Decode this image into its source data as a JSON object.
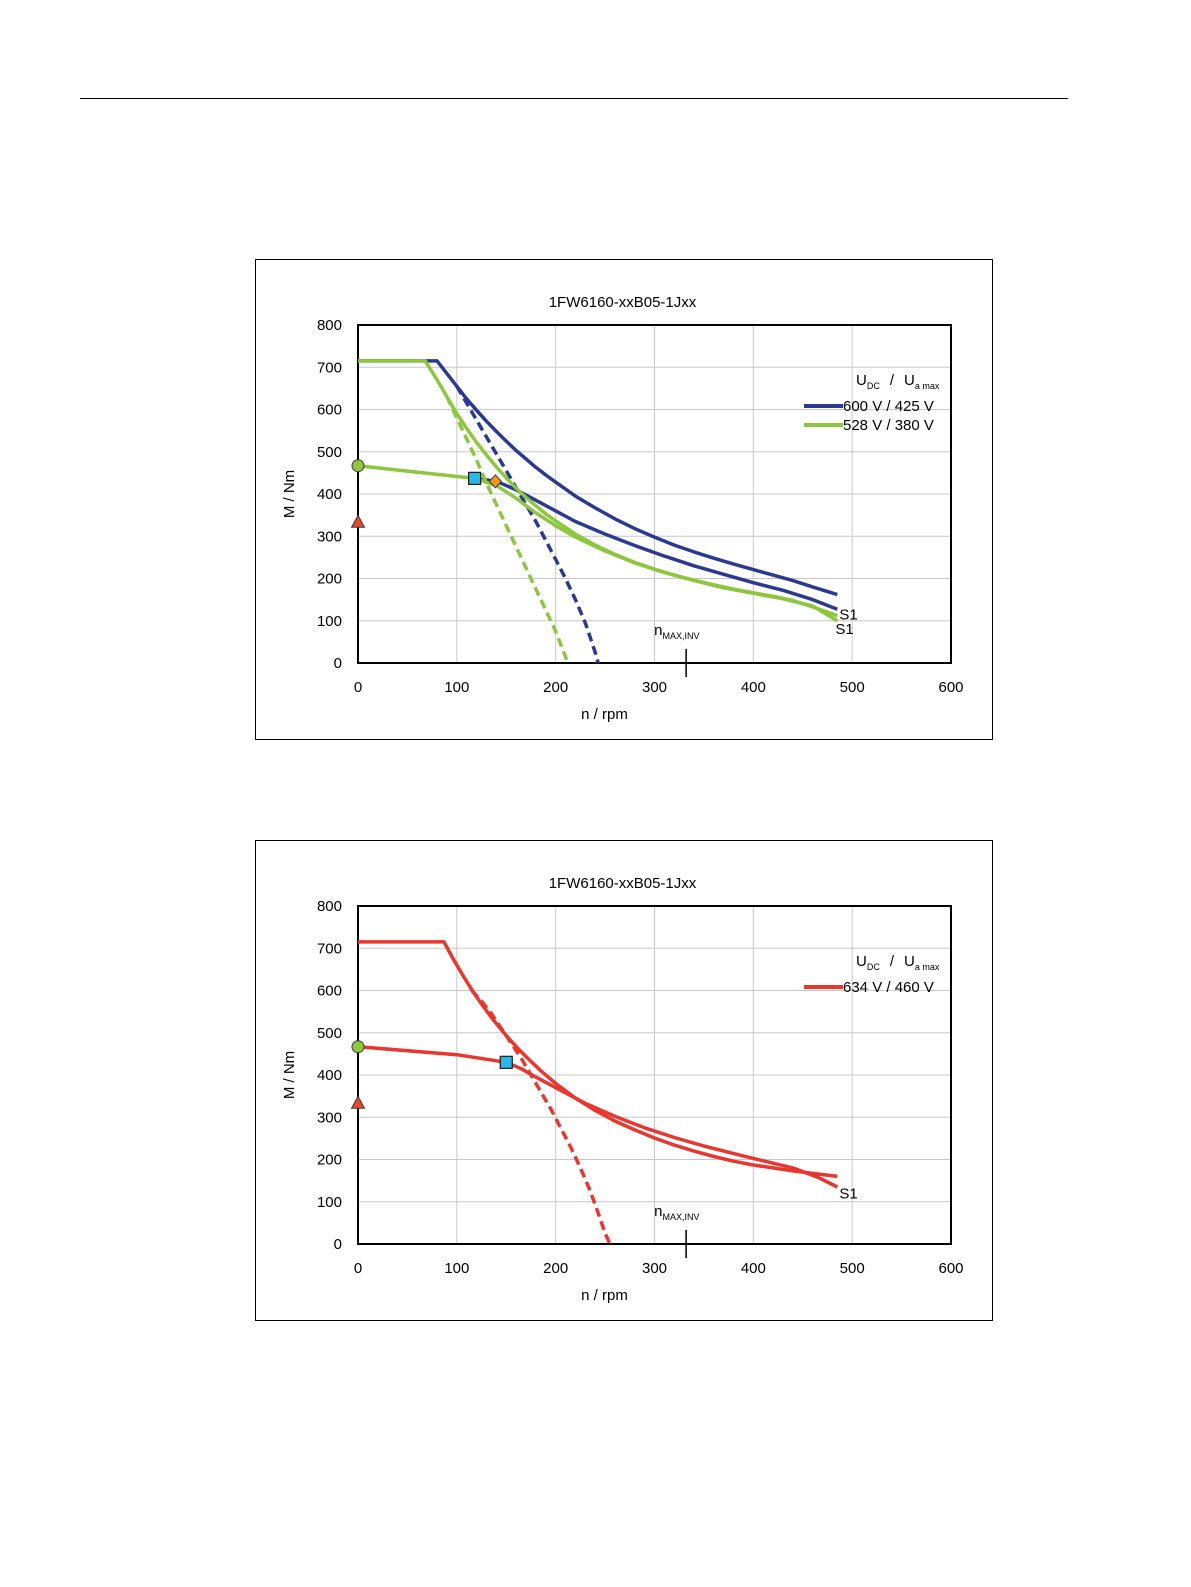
{
  "chart_data": [
    {
      "type": "line",
      "title": "1FW6160-xxB05-1Jxx",
      "xlabel": "n / rpm",
      "ylabel": "M / Nm",
      "xlim": [
        0,
        600
      ],
      "ylim": [
        0,
        800
      ],
      "xticks": [
        "0",
        "100",
        "200",
        "300",
        "400",
        "500",
        "600"
      ],
      "yticks": [
        "0",
        "100",
        "200",
        "300",
        "400",
        "500",
        "600",
        "700",
        "800"
      ],
      "grid": true,
      "legend": {
        "header_main_1": "U",
        "header_sub_1": "DC",
        "header_sep": "/",
        "header_main_2": "U",
        "header_sub_2": "a max",
        "placement": "right",
        "entries": [
          {
            "label": "600 V / 425 V",
            "color": "#2B3990"
          },
          {
            "label": "528 V / 380 V",
            "color": "#8DC63F"
          }
        ]
      },
      "series": [
        {
          "color": "#2B3990",
          "style": "solid",
          "role": "max torque",
          "x": [
            0,
            80,
            90,
            100,
            110,
            120,
            130,
            140,
            150,
            160,
            170,
            180,
            190,
            200,
            220,
            240,
            260,
            280,
            300,
            320,
            340,
            360,
            380,
            400,
            420,
            440,
            460,
            485
          ],
          "y": [
            715,
            715,
            685,
            655,
            625,
            598,
            572,
            548,
            525,
            503,
            483,
            463,
            445,
            428,
            395,
            367,
            341,
            318,
            298,
            279,
            263,
            248,
            234,
            221,
            208,
            195,
            180,
            162
          ]
        },
        {
          "color": "#2B3990",
          "style": "dashed",
          "role": "torque limit dashed",
          "x": [
            100,
            110,
            120,
            130,
            140,
            150,
            160,
            170,
            180,
            190,
            200,
            210,
            220,
            230,
            235,
            240,
            243
          ],
          "y": [
            655,
            615,
            575,
            535,
            495,
            455,
            415,
            375,
            335,
            290,
            245,
            200,
            150,
            95,
            60,
            25,
            0
          ]
        },
        {
          "color": "#2B3990",
          "style": "solid",
          "role": "S1",
          "x": [
            118,
            140,
            160,
            180,
            200,
            220,
            250,
            280,
            310,
            340,
            370,
            400,
            430,
            460,
            485
          ],
          "y": [
            437,
            430,
            410,
            385,
            360,
            335,
            305,
            278,
            253,
            230,
            210,
            190,
            172,
            150,
            127
          ]
        },
        {
          "color": "#8DC63F",
          "style": "solid",
          "role": "max torque",
          "x": [
            0,
            68,
            80,
            90,
            100,
            110,
            120,
            130,
            140,
            150,
            160,
            170,
            180,
            190,
            200,
            220,
            240,
            260,
            280,
            300,
            320,
            340,
            360,
            380,
            400,
            420,
            440,
            460,
            485
          ],
          "y": [
            715,
            715,
            670,
            630,
            590,
            555,
            522,
            492,
            464,
            438,
            414,
            392,
            372,
            353,
            336,
            305,
            279,
            257,
            238,
            222,
            208,
            196,
            185,
            175,
            166,
            158,
            148,
            133,
            112
          ]
        },
        {
          "color": "#8DC63F",
          "style": "dashed",
          "role": "torque limit dashed",
          "x": [
            90,
            100,
            110,
            120,
            130,
            140,
            150,
            160,
            170,
            180,
            190,
            195,
            200,
            205,
            210,
            212
          ],
          "y": [
            630,
            580,
            530,
            480,
            425,
            375,
            325,
            275,
            225,
            175,
            125,
            100,
            75,
            45,
            15,
            0
          ]
        },
        {
          "color": "#8DC63F",
          "style": "solid",
          "role": "S1",
          "x": [
            0,
            118,
            140,
            160,
            180,
            200,
            220,
            250,
            280,
            310,
            340,
            370,
            400,
            430,
            460,
            485
          ],
          "y": [
            467,
            437,
            420,
            390,
            355,
            325,
            298,
            265,
            237,
            214,
            195,
            178,
            165,
            152,
            135,
            100
          ]
        }
      ],
      "markers": [
        {
          "shape": "circle",
          "x": 0,
          "y": 467,
          "color": "#8DC63F"
        },
        {
          "shape": "triangle",
          "x": 0,
          "y": 333,
          "color": "#E8472F"
        },
        {
          "shape": "square",
          "x": 118,
          "y": 437,
          "color": "#29B8E8"
        },
        {
          "shape": "diamond",
          "x": 139,
          "y": 430,
          "color": "#F7941D"
        }
      ],
      "annotations": [
        {
          "text_main": "n",
          "text_sub": "MAX,INV",
          "x": 332
        },
        {
          "text": "S1",
          "x": 485,
          "y": 115
        },
        {
          "text": "S1",
          "x": 481,
          "y": 80
        }
      ]
    },
    {
      "type": "line",
      "title": "1FW6160-xxB05-1Jxx",
      "xlabel": "n / rpm",
      "ylabel": "M / Nm",
      "xlim": [
        0,
        600
      ],
      "ylim": [
        0,
        800
      ],
      "xticks": [
        "0",
        "100",
        "200",
        "300",
        "400",
        "500",
        "600"
      ],
      "yticks": [
        "0",
        "100",
        "200",
        "300",
        "400",
        "500",
        "600",
        "700",
        "800"
      ],
      "grid": true,
      "legend": {
        "header_main_1": "U",
        "header_sub_1": "DC",
        "header_sep": "/",
        "header_main_2": "U",
        "header_sub_2": "a max",
        "placement": "right",
        "entries": [
          {
            "label": "634 V / 460 V",
            "color": "#E8372F"
          }
        ]
      },
      "series": [
        {
          "color": "#E8372F",
          "style": "solid",
          "role": "max torque",
          "x": [
            0,
            87,
            95,
            105,
            115,
            125,
            135,
            145,
            155,
            165,
            175,
            185,
            200,
            220,
            240,
            260,
            280,
            300,
            320,
            340,
            360,
            380,
            400,
            420,
            440,
            460,
            485
          ],
          "y": [
            715,
            715,
            680,
            640,
            602,
            568,
            536,
            507,
            480,
            455,
            432,
            410,
            380,
            345,
            316,
            291,
            270,
            251,
            234,
            220,
            207,
            196,
            187,
            180,
            173,
            167,
            160
          ]
        },
        {
          "color": "#E8372F",
          "style": "dashed",
          "role": "torque limit dashed",
          "x": [
            115,
            125,
            135,
            145,
            155,
            165,
            175,
            185,
            195,
            205,
            215,
            225,
            235,
            245,
            250,
            255
          ],
          "y": [
            600,
            575,
            545,
            510,
            475,
            440,
            400,
            360,
            320,
            275,
            230,
            180,
            125,
            60,
            25,
            0
          ]
        },
        {
          "color": "#E8372F",
          "style": "solid",
          "role": "S1",
          "x": [
            0,
            100,
            150,
            165,
            180,
            200,
            230,
            260,
            290,
            320,
            350,
            380,
            410,
            440,
            465,
            485
          ],
          "y": [
            467,
            448,
            430,
            415,
            395,
            370,
            333,
            302,
            275,
            252,
            232,
            214,
            197,
            180,
            158,
            135
          ]
        }
      ],
      "markers": [
        {
          "shape": "circle",
          "x": 0,
          "y": 467,
          "color": "#8DC63F"
        },
        {
          "shape": "triangle",
          "x": 0,
          "y": 333,
          "color": "#E8472F"
        },
        {
          "shape": "square",
          "x": 150,
          "y": 430,
          "color": "#29B8E8"
        }
      ],
      "annotations": [
        {
          "text_main": "n",
          "text_sub": "MAX,INV",
          "x": 332
        },
        {
          "text": "S1",
          "x": 485,
          "y": 120
        }
      ]
    }
  ]
}
